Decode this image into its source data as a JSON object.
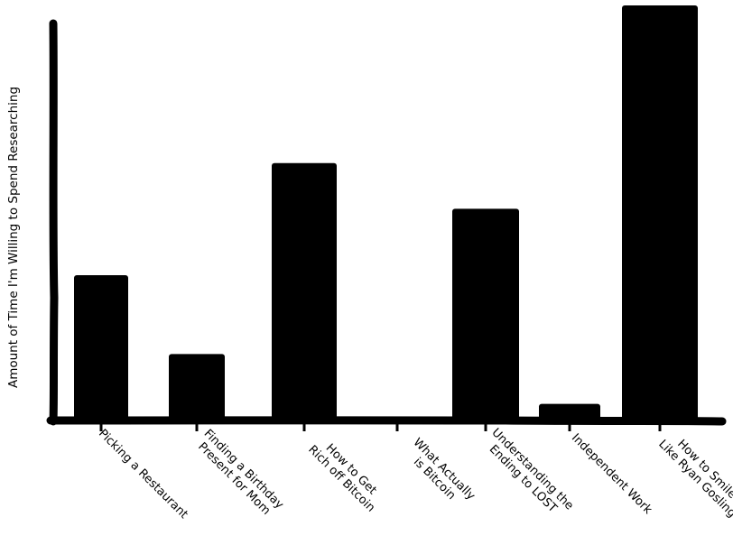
{
  "chart_data": {
    "type": "bar",
    "title": "",
    "xlabel": "",
    "ylabel": "Amount of Time I'm Willing to Spend Researching",
    "categories": [
      [
        "Picking a Restaurant"
      ],
      [
        "Finding a Birthday",
        "Present for Mom"
      ],
      [
        "How to Get",
        "Rich off Bitcoin"
      ],
      [
        "What Actually",
        "is Bitcoin"
      ],
      [
        "Understanding the",
        "Ending to LOST"
      ],
      [
        "Independent Work"
      ],
      [
        "How to Smile",
        "Like Ryan Gosling"
      ]
    ],
    "values": [
      35,
      16,
      62,
      0,
      51,
      4,
      100
    ],
    "ylim": [
      0,
      100
    ],
    "grid": false,
    "legend": "none",
    "bar_color": "#000000",
    "axis_color": "#000000"
  }
}
